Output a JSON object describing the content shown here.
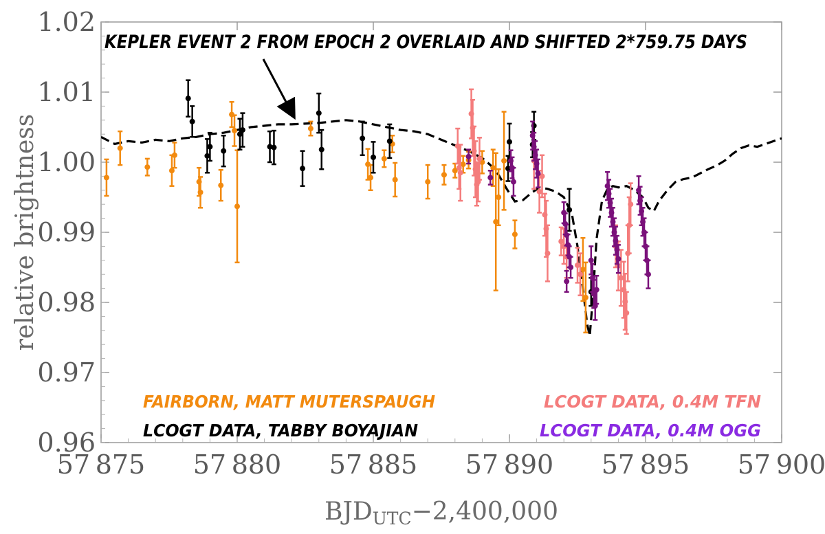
{
  "chart_data": {
    "type": "scatter",
    "xlabel": "BJD",
    "xlabel_sub": "UTC",
    "xlabel_suffix": "−2,400,000",
    "ylabel": "relative brightness",
    "xlim": [
      57875,
      57900
    ],
    "ylim": [
      0.96,
      1.02
    ],
    "xticks": [
      57875,
      57880,
      57885,
      57890,
      57895,
      57900
    ],
    "xtick_labels": [
      "57 875",
      "57 880",
      "57 885",
      "57 890",
      "57 895",
      "57 900"
    ],
    "yticks": [
      0.96,
      0.97,
      0.98,
      0.99,
      1.0,
      1.01,
      1.02
    ],
    "ytick_labels": [
      "0.96",
      "0.97",
      "0.98",
      "0.99",
      "1.00",
      "1.01",
      "1.02"
    ],
    "grid": false,
    "annotation": {
      "text": "KEPLER EVENT 2 FROM EPOCH 2 OVERLAID AND SHIFTED 2*759.75 DAYS",
      "arrow_to": [
        57882.1,
        1.0055
      ]
    },
    "series": [
      {
        "name": "FAIRBORN, MATT MUTERSPAUGH",
        "color": "#f28a0f",
        "points": [
          [
            57875.2,
            0.9978,
            0.0026
          ],
          [
            57875.7,
            1.002,
            0.0024
          ],
          [
            57876.7,
            0.9993,
            0.0012
          ],
          [
            57877.6,
            0.9988,
            0.0022
          ],
          [
            57877.7,
            1.001,
            0.0018
          ],
          [
            57878.6,
            0.9972,
            0.002
          ],
          [
            57878.65,
            0.9957,
            0.0022
          ],
          [
            57879.4,
            0.9967,
            0.0022
          ],
          [
            57879.8,
            1.0068,
            0.0018
          ],
          [
            57879.9,
            1.0045,
            0.0022
          ],
          [
            57880.0,
            0.9937,
            0.008
          ],
          [
            57882.7,
            1.0048,
            0.001
          ],
          [
            57884.8,
            0.9997,
            0.0022
          ],
          [
            57884.9,
            0.9978,
            0.0018
          ],
          [
            57885.4,
            1.0005,
            0.0012
          ],
          [
            57885.7,
            1.0026,
            0.0012
          ],
          [
            57885.8,
            0.9975,
            0.0024
          ],
          [
            57887.0,
            0.9972,
            0.0024
          ],
          [
            57887.6,
            0.9982,
            0.0014
          ],
          [
            57888.0,
            0.9988,
            0.001
          ],
          [
            57888.3,
            0.9997,
            0.0012
          ],
          [
            57888.5,
            1.0003,
            0.0012
          ],
          [
            57889.0,
            1.0,
            0.0016
          ],
          [
            57889.4,
            0.9992,
            0.0026
          ],
          [
            57889.5,
            0.9915,
            0.0098
          ],
          [
            57889.6,
            0.995,
            0.004
          ],
          [
            57889.8,
            1.0002,
            0.007
          ],
          [
            57890.2,
            0.9897,
            0.002
          ],
          [
            57892.8,
            0.9807,
            0.005
          ],
          [
            57892.7,
            0.9847,
            0.0045
          ]
        ]
      },
      {
        "name": "LCOGT DATA, TABBY BOYAJIAN",
        "color": "#000000",
        "points": [
          [
            57878.2,
            1.0091,
            0.0026
          ],
          [
            57878.35,
            1.0058,
            0.0022
          ],
          [
            57878.9,
            1.0009,
            0.0024
          ],
          [
            57879.0,
            1.0022,
            0.002
          ],
          [
            57879.5,
            1.0016,
            0.0022
          ],
          [
            57880.1,
            1.004,
            0.0022
          ],
          [
            57880.2,
            1.0046,
            0.0024
          ],
          [
            57881.2,
            1.0022,
            0.0022
          ],
          [
            57881.35,
            1.0021,
            0.0024
          ],
          [
            57882.4,
            0.9991,
            0.0025
          ],
          [
            57883.0,
            1.007,
            0.0028
          ],
          [
            57883.1,
            1.0018,
            0.0028
          ],
          [
            57884.6,
            1.0034,
            0.0024
          ],
          [
            57885.0,
            1.0007,
            0.0022
          ],
          [
            57885.6,
            1.003,
            0.0024
          ],
          [
            57890.0,
            1.0029,
            0.0026
          ],
          [
            57889.95,
            0.9991,
            0.0018
          ],
          [
            57890.9,
            1.0052,
            0.002
          ],
          [
            57890.85,
            1.0025,
            0.0018
          ],
          [
            57892.2,
            0.9932,
            0.003
          ],
          [
            57893.0,
            0.9815,
            0.002
          ]
        ]
      },
      {
        "name": "LCOGT DATA, 0.4M TFN",
        "color": "#f47c7c",
        "points": [
          [
            57888.1,
            1.0023,
            0.0025
          ],
          [
            57888.15,
            0.9992,
            0.003
          ],
          [
            57888.2,
            0.9985,
            0.004
          ],
          [
            57888.6,
            1.0069,
            0.0035
          ],
          [
            57888.65,
            1.0049,
            0.004
          ],
          [
            57888.7,
            1.0016,
            0.0035
          ],
          [
            57888.75,
            0.999,
            0.004
          ],
          [
            57888.8,
            0.9968,
            0.003
          ],
          [
            57888.85,
            0.9972,
            0.0028
          ],
          [
            57888.9,
            1.0005,
            0.003
          ],
          [
            57890.9,
            1.0002,
            0.004
          ],
          [
            57891.1,
            0.9958,
            0.003
          ],
          [
            57891.2,
            0.998,
            0.003
          ],
          [
            57891.3,
            0.9925,
            0.003
          ],
          [
            57891.35,
            0.9905,
            0.004
          ],
          [
            57891.4,
            0.987,
            0.004
          ],
          [
            57891.9,
            0.9887,
            0.002
          ],
          [
            57892.0,
            0.988,
            0.0025
          ],
          [
            57892.1,
            0.9865,
            0.003
          ],
          [
            57892.5,
            0.9853,
            0.0025
          ],
          [
            57892.6,
            0.984,
            0.003
          ],
          [
            57894.0,
            0.9852,
            0.0035
          ],
          [
            57894.1,
            0.9835,
            0.004
          ],
          [
            57894.2,
            0.9818,
            0.004
          ],
          [
            57894.25,
            0.9801,
            0.004
          ],
          [
            57894.3,
            0.9785,
            0.003
          ],
          [
            57894.35,
            0.987,
            0.004
          ],
          [
            57894.4,
            0.991,
            0.004
          ],
          [
            57894.45,
            0.994,
            0.003
          ],
          [
            57893.9,
            0.988,
            0.003
          ]
        ]
      },
      {
        "name": "LCOGT DATA, 0.4M OGG",
        "color": "#7a117a",
        "points": [
          [
            57888.5,
            1.0008,
            0.001
          ],
          [
            57889.3,
            0.9978,
            0.001
          ],
          [
            57890.05,
            1.0002,
            0.0015
          ],
          [
            57890.1,
            0.9992,
            0.0015
          ],
          [
            57890.15,
            0.9972,
            0.002
          ],
          [
            57890.85,
            1.0038,
            0.002
          ],
          [
            57890.9,
            1.0022,
            0.002
          ],
          [
            57890.95,
            1.001,
            0.002
          ],
          [
            57891.0,
            0.9998,
            0.002
          ],
          [
            57891.05,
            0.9984,
            0.002
          ],
          [
            57892.0,
            0.9928,
            0.0015
          ],
          [
            57892.05,
            0.9912,
            0.0015
          ],
          [
            57892.1,
            0.9896,
            0.0015
          ],
          [
            57892.15,
            0.9882,
            0.0015
          ],
          [
            57892.2,
            0.9865,
            0.0015
          ],
          [
            57892.25,
            0.985,
            0.0015
          ],
          [
            57892.1,
            0.983,
            0.0015
          ],
          [
            57893.0,
            0.986,
            0.002
          ],
          [
            57893.05,
            0.9835,
            0.002
          ],
          [
            57893.1,
            0.9812,
            0.002
          ],
          [
            57893.15,
            0.9795,
            0.002
          ],
          [
            57893.2,
            0.9818,
            0.002
          ],
          [
            57893.6,
            0.9966,
            0.002
          ],
          [
            57893.65,
            0.9955,
            0.002
          ],
          [
            57893.7,
            0.9942,
            0.002
          ],
          [
            57893.75,
            0.9928,
            0.002
          ],
          [
            57893.8,
            0.9915,
            0.002
          ],
          [
            57893.85,
            0.99,
            0.002
          ],
          [
            57893.9,
            0.9888,
            0.002
          ],
          [
            57893.95,
            0.9875,
            0.002
          ],
          [
            57894.0,
            0.9862,
            0.002
          ],
          [
            57894.75,
            0.996,
            0.002
          ],
          [
            57894.8,
            0.9945,
            0.002
          ],
          [
            57894.85,
            0.993,
            0.002
          ],
          [
            57894.9,
            0.9915,
            0.002
          ],
          [
            57894.95,
            0.99,
            0.002
          ],
          [
            57895.0,
            0.988,
            0.002
          ],
          [
            57895.05,
            0.986,
            0.002
          ],
          [
            57895.1,
            0.984,
            0.002
          ]
        ]
      }
    ],
    "kepler_curve": {
      "style": "dashed",
      "color": "#000000",
      "x": [
        57875.0,
        57875.5,
        57876.0,
        57876.5,
        57877.0,
        57877.5,
        57878.0,
        57878.5,
        57879.0,
        57879.5,
        57880.0,
        57880.5,
        57881.0,
        57881.5,
        57882.0,
        57882.5,
        57883.0,
        57883.5,
        57884.0,
        57884.5,
        57885.0,
        57885.5,
        57886.0,
        57886.5,
        57887.0,
        57887.5,
        57888.0,
        57888.5,
        57889.0,
        57889.3,
        57889.6,
        57889.9,
        57890.2,
        57890.5,
        57890.8,
        57891.1,
        57891.4,
        57891.7,
        57892.0,
        57892.3,
        57892.5,
        57892.7,
        57892.85,
        57892.95,
        57893.05,
        57893.2,
        57893.4,
        57893.6,
        57893.8,
        57894.0,
        57894.3,
        57894.6,
        57894.9,
        57895.1,
        57895.3,
        57895.5,
        57895.8,
        57896.1,
        57896.4,
        57896.7,
        57897.0,
        57897.3,
        57897.6,
        57897.9,
        57898.2,
        57898.5,
        57898.8,
        57899.1,
        57899.4,
        57899.7,
        57900.0
      ],
      "y": [
        1.0036,
        1.0026,
        1.003,
        1.0028,
        1.0032,
        1.003,
        1.0034,
        1.0036,
        1.004,
        1.0042,
        1.0046,
        1.005,
        1.0052,
        1.0054,
        1.0054,
        1.0055,
        1.0056,
        1.0058,
        1.006,
        1.0058,
        1.0054,
        1.005,
        1.0046,
        1.0044,
        1.004,
        1.0032,
        1.0024,
        1.0016,
        1.0006,
        0.9996,
        0.9982,
        0.9962,
        0.9944,
        0.9946,
        0.9956,
        0.9964,
        0.9962,
        0.9958,
        0.995,
        0.9925,
        0.988,
        0.982,
        0.977,
        0.9752,
        0.98,
        0.989,
        0.9945,
        0.9962,
        0.9966,
        0.9964,
        0.9966,
        0.996,
        0.995,
        0.9935,
        0.993,
        0.9945,
        0.996,
        0.9972,
        0.9976,
        0.9978,
        0.9984,
        0.999,
        0.9995,
        1.0002,
        1.0012,
        1.002,
        1.0024,
        1.0022,
        1.0026,
        1.003,
        1.0034
      ]
    },
    "legend": {
      "placement": "inside-bottom",
      "entries": [
        {
          "text": "FAIRBORN, MATT MUTERSPAUGH",
          "color": "#f28a0f",
          "position": "bottom-left"
        },
        {
          "text": "LCOGT DATA, TABBY BOYAJIAN",
          "color": "#000000",
          "position": "bottom-left"
        },
        {
          "text": "LCOGT DATA, 0.4M TFN",
          "color": "#f47c7c",
          "position": "bottom-right"
        },
        {
          "text": "LCOGT DATA, 0.4M OGG",
          "color": "#8a2be2",
          "position": "bottom-right"
        }
      ]
    }
  }
}
